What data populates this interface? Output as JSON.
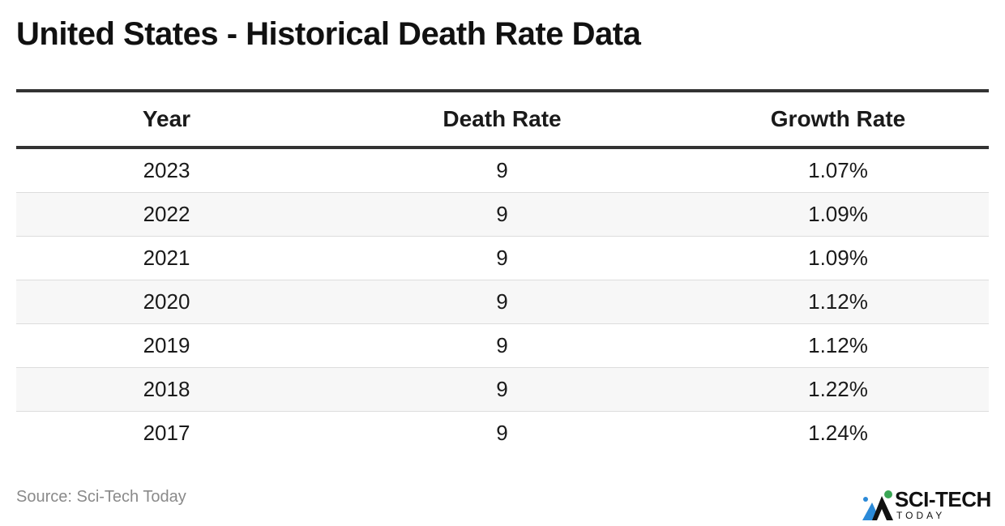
{
  "title": "United States - Historical Death Rate Data",
  "chart_data": {
    "type": "table",
    "title": "United States - Historical Death Rate Data",
    "columns": [
      "Year",
      "Death Rate",
      "Growth Rate"
    ],
    "rows": [
      [
        "2023",
        "9",
        "1.07%"
      ],
      [
        "2022",
        "9",
        "1.09%"
      ],
      [
        "2021",
        "9",
        "1.09%"
      ],
      [
        "2020",
        "9",
        "1.12%"
      ],
      [
        "2019",
        "9",
        "1.12%"
      ],
      [
        "2018",
        "9",
        "1.22%"
      ],
      [
        "2017",
        "9",
        "1.24%"
      ]
    ]
  },
  "source": "Source: Sci-Tech Today",
  "logo": {
    "name": "SCI-TECH",
    "sub": "TODAY",
    "icon": "mountain-logo-icon",
    "colors": {
      "blue": "#2b8ad8",
      "green": "#3aa655",
      "dark": "#111111"
    }
  },
  "colors": {
    "header_rule": "#333333",
    "row_alt": "#f7f7f7",
    "row_rule": "#dddddd",
    "source_text": "#8a8a8a"
  }
}
